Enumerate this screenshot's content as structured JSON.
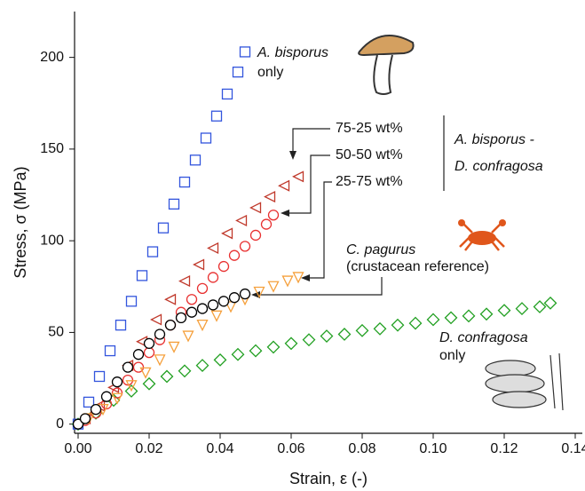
{
  "chart_data": {
    "type": "scatter",
    "x_label": "Strain, ε (-)",
    "y_label": "Stress, σ (MPa)",
    "xlim": [
      -0.001,
      0.142
    ],
    "ylim": [
      -5,
      225
    ],
    "xticks": [
      {
        "value": 0,
        "label": "0.00"
      },
      {
        "value": 0.02,
        "label": "0.02"
      },
      {
        "value": 0.04,
        "label": "0.04"
      },
      {
        "value": 0.06,
        "label": "0.06"
      },
      {
        "value": 0.08,
        "label": "0.08"
      },
      {
        "value": 0.1,
        "label": "0.10"
      },
      {
        "value": 0.12,
        "label": "0.12"
      },
      {
        "value": 0.14,
        "label": "0.14"
      }
    ],
    "yticks": [
      0,
      50,
      100,
      150,
      200
    ],
    "series": [
      {
        "color": "#22a022",
        "marker": "diamond",
        "fill": "none",
        "x": [
          0.0,
          0.005,
          0.01,
          0.015,
          0.02,
          0.025,
          0.03,
          0.035,
          0.04,
          0.045,
          0.05,
          0.055,
          0.06,
          0.065,
          0.07,
          0.075,
          0.08,
          0.085,
          0.09,
          0.095,
          0.1,
          0.105,
          0.11,
          0.115,
          0.12,
          0.125,
          0.13,
          0.133
        ],
        "values": [
          0,
          6,
          13,
          18,
          22,
          26,
          29,
          32,
          35,
          38,
          40,
          42,
          44,
          46,
          48,
          49,
          51,
          52,
          54,
          55,
          57,
          58,
          59,
          60,
          62,
          63,
          64,
          66
        ]
      },
      {
        "color": "#3355dd",
        "marker": "square",
        "fill": "none",
        "x": [
          0.0,
          0.003,
          0.006,
          0.009,
          0.012,
          0.015,
          0.018,
          0.021,
          0.024,
          0.027,
          0.03,
          0.033,
          0.036,
          0.039,
          0.042,
          0.045,
          0.047
        ],
        "values": [
          0,
          12,
          26,
          40,
          54,
          67,
          81,
          94,
          107,
          120,
          132,
          144,
          156,
          168,
          180,
          192,
          203
        ]
      },
      {
        "color": "#c0392b",
        "marker": "triangle-left",
        "fill": "none",
        "x": [
          0.002,
          0.006,
          0.01,
          0.014,
          0.018,
          0.022,
          0.026,
          0.03,
          0.034,
          0.038,
          0.042,
          0.046,
          0.05,
          0.054,
          0.058,
          0.062
        ],
        "values": [
          3,
          10,
          20,
          32,
          45,
          57,
          68,
          78,
          87,
          96,
          104,
          111,
          118,
          124,
          130,
          135
        ]
      },
      {
        "color": "#e83030",
        "marker": "circle",
        "fill": "none",
        "x": [
          0.002,
          0.005,
          0.008,
          0.011,
          0.014,
          0.017,
          0.02,
          0.023,
          0.026,
          0.029,
          0.032,
          0.035,
          0.038,
          0.041,
          0.044,
          0.047,
          0.05,
          0.053,
          0.055
        ],
        "values": [
          2,
          6,
          11,
          17,
          24,
          31,
          39,
          46,
          54,
          61,
          68,
          74,
          80,
          86,
          92,
          97,
          103,
          109,
          114
        ]
      },
      {
        "color": "#f5a03c",
        "marker": "triangle-down",
        "fill": "none",
        "x": [
          0.003,
          0.007,
          0.011,
          0.015,
          0.019,
          0.023,
          0.027,
          0.031,
          0.035,
          0.039,
          0.043,
          0.047,
          0.051,
          0.055,
          0.059,
          0.062
        ],
        "values": [
          3,
          8,
          14,
          21,
          28,
          35,
          42,
          48,
          54,
          59,
          64,
          68,
          72,
          75,
          78,
          80
        ]
      },
      {
        "color": "#000000",
        "marker": "circle",
        "fill": "#ffffff",
        "x": [
          0.0,
          0.002,
          0.005,
          0.008,
          0.011,
          0.014,
          0.017,
          0.02,
          0.023,
          0.026,
          0.029,
          0.032,
          0.035,
          0.038,
          0.041,
          0.044,
          0.047
        ],
        "values": [
          0,
          3,
          8,
          15,
          23,
          31,
          38,
          44,
          49,
          54,
          58,
          61,
          63,
          65,
          67,
          69,
          71
        ]
      }
    ],
    "annotations": [
      "A. bisporus",
      "only",
      "75-25 wt%",
      "50-50 wt%",
      "25-75 wt%",
      "A. bisporus -",
      "D. confragosa",
      "C. pagurus",
      "(crustacean reference)",
      "D. confragosa",
      "only"
    ]
  }
}
